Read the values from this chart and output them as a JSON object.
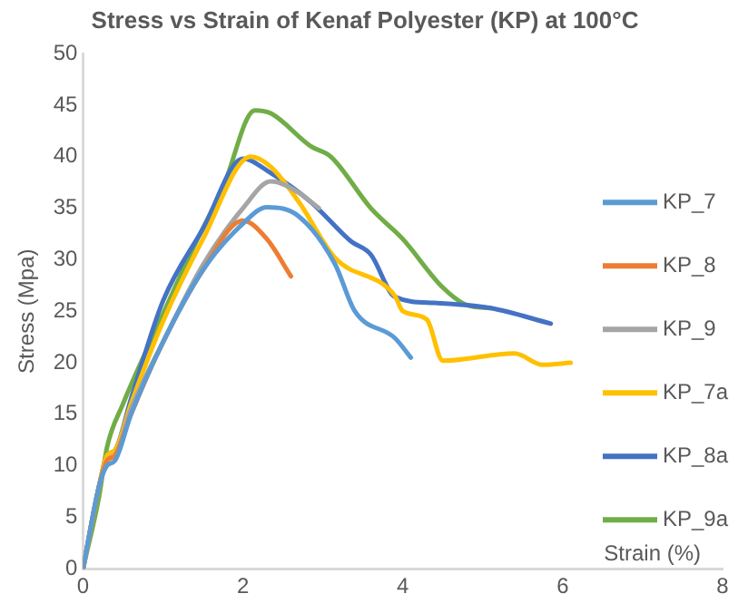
{
  "chart_data": {
    "type": "line",
    "title": "Stress vs Strain of Kenaf Polyester (KP) at 100°C",
    "xlabel": "Strain (%)",
    "ylabel": "Stress (Mpa)",
    "xlim": [
      0,
      8
    ],
    "xticks": [
      0,
      2,
      4,
      6,
      8
    ],
    "ylim": [
      0,
      50
    ],
    "yticks": [
      0,
      5,
      10,
      15,
      20,
      25,
      30,
      35,
      40,
      45,
      50
    ],
    "grid": false,
    "legend": "right",
    "marker": "none",
    "line_style": "solid",
    "series": [
      {
        "name": "KP_7",
        "color": "#5b9bd5",
        "x": [
          0,
          0.2,
          0.3,
          0.4,
          0.6,
          1.0,
          1.5,
          2.0,
          2.3,
          2.7,
          3.15,
          3.4,
          3.9,
          4.1
        ],
        "values": [
          0,
          8,
          10,
          10.5,
          15,
          22,
          29,
          33.5,
          35.1,
          34.2,
          29.6,
          25,
          22.4,
          20.5
        ]
      },
      {
        "name": "KP_8",
        "color": "#ed7d31",
        "x": [
          0,
          0.2,
          0.3,
          0.4,
          0.6,
          1.0,
          1.5,
          2.0,
          2.3,
          2.6
        ],
        "values": [
          0,
          8,
          10.5,
          11,
          15,
          22,
          29,
          33.8,
          32,
          28.4
        ]
      },
      {
        "name": "KP_9",
        "color": "#a5a5a5",
        "x": [
          0,
          0.2,
          0.3,
          0.4,
          0.6,
          1.0,
          1.5,
          2.0,
          2.35,
          2.7,
          2.95
        ],
        "values": [
          0,
          8,
          10.5,
          11,
          15.5,
          22,
          29.5,
          35,
          37.6,
          36.5,
          35
        ]
      },
      {
        "name": "KP_7a",
        "color": "#ffc000",
        "x": [
          0,
          0.2,
          0.3,
          0.4,
          0.6,
          1.0,
          1.5,
          2.1,
          2.35,
          2.7,
          3.15,
          3.9,
          4.0,
          4.3,
          4.5,
          5.4,
          5.75,
          6.1
        ],
        "values": [
          0,
          8,
          11,
          11.5,
          16,
          24,
          32,
          40,
          39,
          35.6,
          30.2,
          26.5,
          25,
          24.2,
          20.2,
          20.9,
          19.8,
          20
        ]
      },
      {
        "name": "KP_8a",
        "color": "#4472c4",
        "x": [
          0,
          0.2,
          0.3,
          0.4,
          0.6,
          1.0,
          1.5,
          2.0,
          2.35,
          2.85,
          3.35,
          3.6,
          3.9,
          4.4,
          5.1,
          5.85
        ],
        "values": [
          0,
          8,
          11,
          11.5,
          16.5,
          26,
          33,
          39.8,
          38.4,
          35.6,
          31.8,
          30.5,
          26.4,
          25.8,
          25.3,
          23.8
        ]
      },
      {
        "name": "KP_9a",
        "color": "#70ad47",
        "x": [
          0,
          0.2,
          0.3,
          0.5,
          0.9,
          1.4,
          1.75,
          2.15,
          2.35,
          2.85,
          3.1,
          3.6,
          4.0,
          4.5,
          4.8,
          5.1
        ],
        "values": [
          0,
          7,
          11.8,
          16,
          23,
          31.5,
          37,
          44.5,
          44.2,
          41,
          40,
          35,
          32,
          27.3,
          25.6,
          25.3
        ]
      }
    ]
  }
}
